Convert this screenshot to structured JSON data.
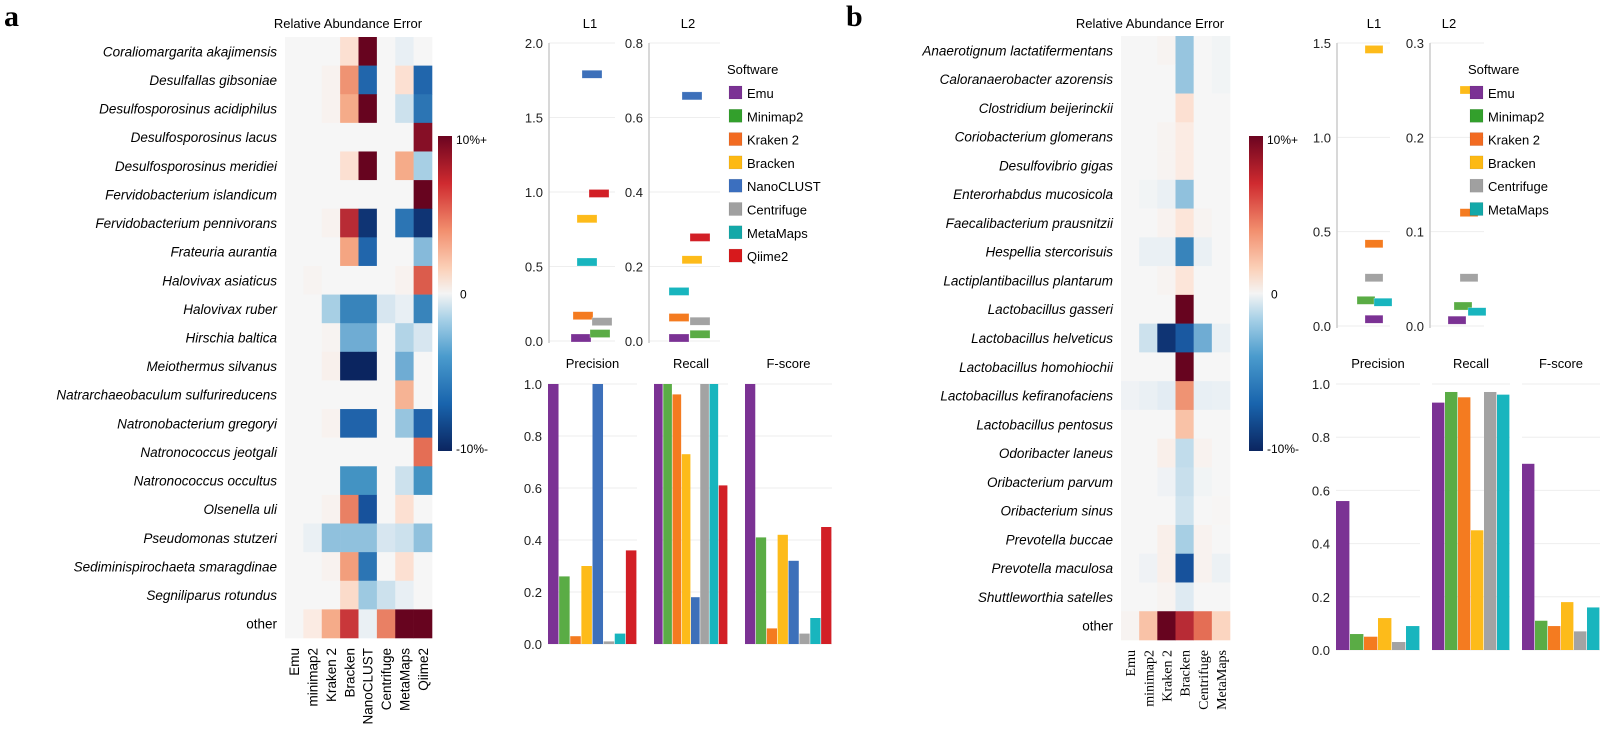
{
  "chart_data": [
    {
      "panel": "a",
      "type": "heatmap",
      "title": "Relative Abundance Error",
      "value_scale": "fraction of 10% (1 = 10%+, -1 = -10%-)",
      "columns": [
        "Emu",
        "minimap2",
        "Kraken 2",
        "Bracken",
        "NanoCLUST",
        "Centrifuge",
        "MetaMaps",
        "Qiime2"
      ],
      "rows": [
        "Coraliomargarita akajimensis",
        "Desulfallas gibsoniae",
        "Desulfosporosinus acidiphilus",
        "Desulfosporosinus lacus",
        "Desulfosporosinus meridiei",
        "Fervidobacterium islandicum",
        "Fervidobacterium pennivorans",
        "Frateuria aurantia",
        "Halovivax asiaticus",
        "Halovivax ruber",
        "Hirschia baltica",
        "Meiothermus silvanus",
        "Natrarchaeobaculum sulfurireducens",
        "Natronobacterium gregoryi",
        "Natronococcus jeotgali",
        "Natronococcus occultus",
        "Olsenella uli",
        "Pseudomonas stutzeri",
        "Sediminispirochaeta smaragdinae",
        "Segniliparus rotundus",
        "other"
      ],
      "plain_rows": [
        "other"
      ],
      "values": [
        [
          0,
          0,
          0,
          0.15,
          1,
          0,
          -0.06,
          0
        ],
        [
          0,
          0,
          0.03,
          0.45,
          -0.7,
          0,
          0.15,
          -0.7
        ],
        [
          0,
          0,
          0.03,
          0.38,
          1,
          0,
          -0.15,
          -0.65
        ],
        [
          0,
          0,
          0,
          0,
          0,
          0,
          0,
          0.9
        ],
        [
          0,
          0,
          0,
          0.15,
          1,
          0,
          0.38,
          -0.25
        ],
        [
          0,
          0,
          0,
          0,
          0,
          0,
          0,
          1
        ],
        [
          0,
          0,
          0.03,
          0.75,
          -0.95,
          0,
          -0.65,
          -0.95
        ],
        [
          0,
          0,
          0,
          0.4,
          -0.7,
          0,
          0,
          -0.35
        ],
        [
          0,
          0.02,
          0,
          0,
          0,
          0,
          0.03,
          0.6
        ],
        [
          0,
          0,
          -0.25,
          -0.6,
          -0.6,
          -0.12,
          -0.06,
          -0.6
        ],
        [
          0,
          0,
          0.02,
          -0.42,
          -0.42,
          0,
          -0.22,
          -0.12
        ],
        [
          0,
          0,
          0.04,
          -1,
          -1,
          0,
          -0.42,
          0
        ],
        [
          0,
          0,
          0,
          0,
          0,
          0,
          0.35,
          0
        ],
        [
          0,
          0,
          0.03,
          -0.72,
          -0.72,
          0,
          -0.3,
          -0.72
        ],
        [
          0,
          0,
          0,
          0,
          0,
          0,
          0,
          0.55
        ],
        [
          0,
          0,
          0,
          -0.55,
          -0.55,
          0,
          -0.15,
          -0.55
        ],
        [
          0,
          0,
          0.03,
          0.5,
          -0.85,
          0,
          0.15,
          0
        ],
        [
          0,
          -0.05,
          -0.32,
          -0.32,
          -0.32,
          -0.12,
          -0.15,
          -0.32
        ],
        [
          0,
          0,
          0.03,
          0.42,
          -0.65,
          0,
          0.15,
          0
        ],
        [
          0,
          0,
          0,
          0.18,
          -0.28,
          -0.15,
          -0.06,
          0
        ],
        [
          0,
          0.08,
          0.38,
          0.7,
          -0.05,
          0.5,
          1,
          1
        ]
      ],
      "colorbar": {
        "max_label": "10%+",
        "mid_label": "0",
        "min_label": "-10%-"
      }
    },
    {
      "panel": "a",
      "type": "scatter",
      "title": "L1",
      "ylim": [
        0,
        2.0
      ],
      "yticks": [
        "0.0",
        "0.5",
        "1.0",
        "1.5",
        "2.0"
      ],
      "ytick_values": [
        0,
        0.5,
        1.0,
        1.5,
        2.0
      ],
      "points": [
        {
          "software": "Emu",
          "value": 0.0
        },
        {
          "software": "Minimap2",
          "value": 0.03
        },
        {
          "software": "Kraken 2",
          "value": 0.15
        },
        {
          "software": "Bracken",
          "value": 0.8
        },
        {
          "software": "NanoCLUST",
          "value": 1.77
        },
        {
          "software": "Centrifuge",
          "value": 0.11
        },
        {
          "software": "MetaMaps",
          "value": 0.51
        },
        {
          "software": "Qiime2",
          "value": 0.97
        }
      ]
    },
    {
      "panel": "a",
      "type": "scatter",
      "title": "L2",
      "ylim": [
        0,
        0.8
      ],
      "yticks": [
        "0.0",
        "0.2",
        "0.4",
        "0.6",
        "0.8"
      ],
      "ytick_values": [
        0,
        0.2,
        0.4,
        0.6,
        0.8
      ],
      "points": [
        {
          "software": "Emu",
          "value": 0.0
        },
        {
          "software": "Minimap2",
          "value": 0.01
        },
        {
          "software": "Kraken 2",
          "value": 0.055
        },
        {
          "software": "Bracken",
          "value": 0.21
        },
        {
          "software": "NanoCLUST",
          "value": 0.65
        },
        {
          "software": "Centrifuge",
          "value": 0.045
        },
        {
          "software": "MetaMaps",
          "value": 0.125
        },
        {
          "software": "Qiime2",
          "value": 0.27
        }
      ]
    },
    {
      "panel": "a",
      "type": "bar",
      "titles": [
        "Precision",
        "Recall",
        "F-score"
      ],
      "ylim": [
        0,
        1.0
      ],
      "yticks": [
        "0.0",
        "0.2",
        "0.4",
        "0.6",
        "0.8",
        "1.0"
      ],
      "ytick_values": [
        0,
        0.2,
        0.4,
        0.6,
        0.8,
        1.0
      ],
      "categories": [
        "Emu",
        "Minimap2",
        "Kraken 2",
        "Bracken",
        "NanoCLUST",
        "Centrifuge",
        "MetaMaps",
        "Qiime2"
      ],
      "series": [
        {
          "name": "Precision",
          "values": [
            1.0,
            0.26,
            0.03,
            0.3,
            1.0,
            0.01,
            0.04,
            0.36
          ]
        },
        {
          "name": "Recall",
          "values": [
            1.0,
            1.0,
            0.96,
            0.73,
            0.18,
            1.0,
            1.0,
            0.61
          ]
        },
        {
          "name": "F-score",
          "values": [
            1.0,
            0.41,
            0.06,
            0.42,
            0.32,
            0.04,
            0.1,
            0.45
          ]
        }
      ]
    },
    {
      "panel": "b",
      "type": "heatmap",
      "title": "Relative Abundance Error",
      "value_scale": "fraction of 10% (1 = 10%+, -1 = -10%-)",
      "columns": [
        "Emu",
        "minimap2",
        "Kraken 2",
        "Bracken",
        "Centrifuge",
        "MetaMaps"
      ],
      "rows": [
        "Anaerotignum lactatifermentans",
        "Caloranaerobacter azorensis",
        "Clostridium beijerinckii",
        "Coriobacterium glomerans",
        "Desulfovibrio gigas",
        "Enterorhabdus mucosicola",
        "Faecalibacterium prausnitzii",
        "Hespellia stercorisuis",
        "Lactiplantibacillus plantarum",
        "Lactobacillus gasseri",
        "Lactobacillus helveticus",
        "Lactobacillus homohiochii",
        "Lactobacillus kefiranofaciens",
        "Lactobacillus pentosus",
        "Odoribacter laneus",
        "Oribacterium parvum",
        "Oribacterium sinus",
        "Prevotella buccae",
        "Prevotella maculosa",
        "Shuttleworthia satelles",
        "other"
      ],
      "plain_rows": [
        "other"
      ],
      "values": [
        [
          0,
          0,
          0.02,
          -0.3,
          0,
          -0.02
        ],
        [
          0,
          0,
          0,
          -0.3,
          0,
          -0.02
        ],
        [
          0,
          0,
          0,
          0.15,
          0,
          0
        ],
        [
          0,
          0,
          0.02,
          0.08,
          0,
          0
        ],
        [
          0,
          0,
          0.02,
          0.08,
          0,
          0
        ],
        [
          0,
          -0.02,
          -0.05,
          -0.32,
          0,
          0
        ],
        [
          0,
          0,
          0.03,
          0.12,
          0.02,
          0
        ],
        [
          0,
          -0.05,
          -0.05,
          -0.6,
          -0.05,
          0
        ],
        [
          0,
          0,
          0.02,
          0.12,
          0,
          0
        ],
        [
          0,
          0,
          0,
          1,
          0,
          0
        ],
        [
          0,
          -0.15,
          -0.95,
          -0.8,
          -0.42,
          -0.05
        ],
        [
          0,
          0,
          0,
          1,
          0,
          0
        ],
        [
          -0.03,
          -0.05,
          -0.08,
          0.45,
          -0.06,
          -0.05
        ],
        [
          0,
          0,
          0,
          0.3,
          0,
          0
        ],
        [
          0,
          0,
          0.05,
          -0.18,
          0.03,
          0
        ],
        [
          0,
          0,
          -0.03,
          -0.16,
          -0.02,
          0
        ],
        [
          0,
          0,
          0,
          -0.14,
          0,
          0.01
        ],
        [
          0,
          0,
          0.05,
          -0.25,
          0.03,
          0
        ],
        [
          0,
          -0.03,
          0.05,
          -0.85,
          0.03,
          -0.04
        ],
        [
          0,
          0,
          0.02,
          -0.1,
          0,
          0
        ],
        [
          0.02,
          0.3,
          1,
          0.75,
          0.55,
          0.22
        ]
      ],
      "colorbar": {
        "max_label": "10%+",
        "mid_label": "0",
        "min_label": "-10%-"
      }
    },
    {
      "panel": "b",
      "type": "scatter",
      "title": "L1",
      "ylim": [
        0,
        1.5
      ],
      "yticks": [
        "0.0",
        "0.5",
        "1.0",
        "1.5"
      ],
      "ytick_values": [
        0,
        0.5,
        1.0,
        1.5
      ],
      "points": [
        {
          "software": "Emu",
          "value": 0.02
        },
        {
          "software": "Minimap2",
          "value": 0.12
        },
        {
          "software": "Kraken 2",
          "value": 0.42
        },
        {
          "software": "Bracken",
          "value": 1.45
        },
        {
          "software": "Centrifuge",
          "value": 0.24
        },
        {
          "software": "MetaMaps",
          "value": 0.11
        }
      ]
    },
    {
      "panel": "b",
      "type": "scatter",
      "title": "L2",
      "ylim": [
        0,
        0.3
      ],
      "yticks": [
        "0.0",
        "0.1",
        "0.2",
        "0.3"
      ],
      "ytick_values": [
        0,
        0.1,
        0.2,
        0.3
      ],
      "points": [
        {
          "software": "Emu",
          "value": 0.003
        },
        {
          "software": "Minimap2",
          "value": 0.018
        },
        {
          "software": "Kraken 2",
          "value": 0.117
        },
        {
          "software": "Bracken",
          "value": 0.247
        },
        {
          "software": "Centrifuge",
          "value": 0.048
        },
        {
          "software": "MetaMaps",
          "value": 0.012
        }
      ]
    },
    {
      "panel": "b",
      "type": "bar",
      "titles": [
        "Precision",
        "Recall",
        "F-score"
      ],
      "ylim": [
        0,
        1.0
      ],
      "yticks": [
        "0.0",
        "0.2",
        "0.4",
        "0.6",
        "0.8",
        "1.0"
      ],
      "ytick_values": [
        0,
        0.2,
        0.4,
        0.6,
        0.8,
        1.0
      ],
      "categories": [
        "Emu",
        "Minimap2",
        "Kraken 2",
        "Bracken",
        "Centrifuge",
        "MetaMaps"
      ],
      "series": [
        {
          "name": "Precision",
          "values": [
            0.56,
            0.06,
            0.05,
            0.12,
            0.03,
            0.09
          ]
        },
        {
          "name": "Recall",
          "values": [
            0.93,
            0.97,
            0.95,
            0.45,
            0.97,
            0.96
          ]
        },
        {
          "name": "F-score",
          "values": [
            0.7,
            0.11,
            0.09,
            0.18,
            0.07,
            0.16
          ]
        }
      ]
    }
  ],
  "panels": {
    "a": {
      "letter": "a",
      "heatmap_title": "Relative Abundance Error",
      "l1_title": "L1",
      "l2_title": "L2"
    },
    "b": {
      "letter": "b",
      "heatmap_title": "Relative Abundance Error",
      "l1_title": "L1",
      "l2_title": "L2"
    }
  },
  "legends": {
    "a": {
      "title": "Software",
      "items": [
        {
          "label": "Emu",
          "color": "#7b3294"
        },
        {
          "label": "Minimap2",
          "color": "#33a02c"
        },
        {
          "label": "Kraken 2",
          "color": "#f26b21"
        },
        {
          "label": "Bracken",
          "color": "#fdb913"
        },
        {
          "label": "NanoCLUST",
          "color": "#3b6fbf"
        },
        {
          "label": "Centrifuge",
          "color": "#a0a0a0"
        },
        {
          "label": "MetaMaps",
          "color": "#13a8a8"
        },
        {
          "label": "Qiime2",
          "color": "#d7191c"
        }
      ]
    },
    "b": {
      "title": "Software",
      "items": [
        {
          "label": "Emu",
          "color": "#7b3294"
        },
        {
          "label": "Minimap2",
          "color": "#33a02c"
        },
        {
          "label": "Kraken 2",
          "color": "#f26b21"
        },
        {
          "label": "Bracken",
          "color": "#fdb913"
        },
        {
          "label": "Centrifuge",
          "color": "#a0a0a0"
        },
        {
          "label": "MetaMaps",
          "color": "#13a8a8"
        }
      ]
    }
  },
  "software_colors": {
    "Emu": "#7b3294",
    "Minimap2": "#5aac45",
    "Kraken 2": "#f47b20",
    "Bracken": "#fdbb1a",
    "NanoCLUST": "#3d70ba",
    "Centrifuge": "#a3a3a3",
    "MetaMaps": "#18b5be",
    "Qiime2": "#d21f26"
  }
}
